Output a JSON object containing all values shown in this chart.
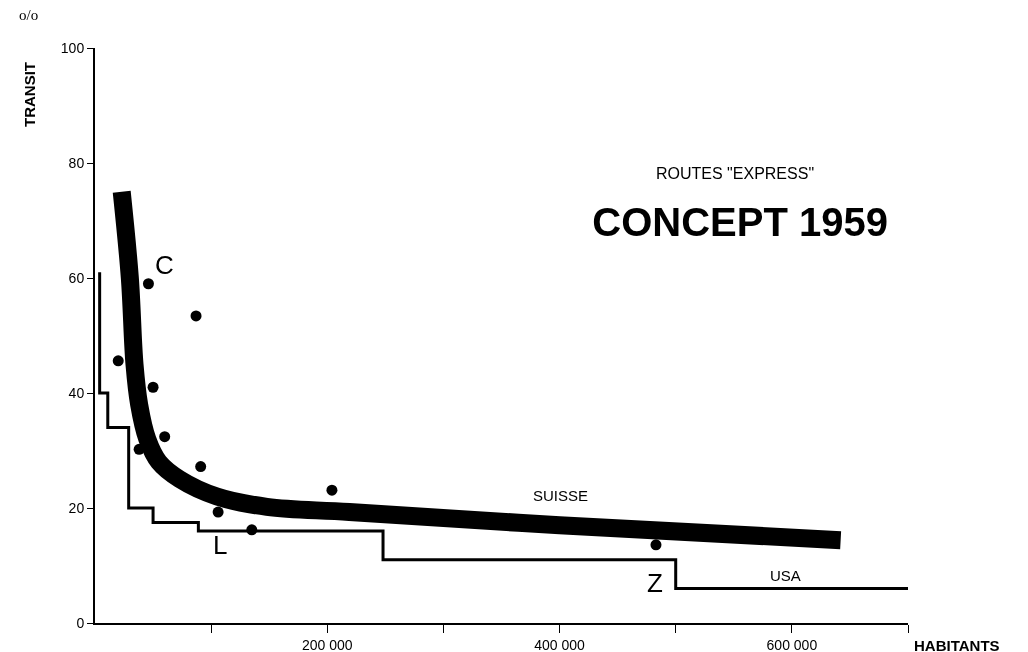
{
  "chart_data": {
    "type": "scatter",
    "title": "CONCEPT 1959",
    "subtitle": "ROUTES \"EXPRESS\"",
    "xlabel": "HABITANTS",
    "ylabel": "TRANSIT",
    "xlim": [
      0,
      700000
    ],
    "ylim": [
      0,
      100
    ],
    "xticks": [
      {
        "value": 100000,
        "label": null
      },
      {
        "value": 200000,
        "label": "200 000"
      },
      {
        "value": 300000,
        "label": null
      },
      {
        "value": 400000,
        "label": "400 000"
      },
      {
        "value": 500000,
        "label": null
      },
      {
        "value": 600000,
        "label": "600 000"
      },
      {
        "value": 700000,
        "label": null
      }
    ],
    "yticks": [
      0,
      20,
      40,
      60,
      80,
      100
    ],
    "grid": false,
    "line_style": "solid",
    "series": [
      {
        "type": "step",
        "color": "#000000",
        "x": [
          4000,
          4000,
          11000,
          29000,
          50000,
          89000,
          248000,
          500000,
          700000
        ],
        "values": [
          61,
          40,
          34,
          20,
          17.5,
          16,
          11,
          6,
          6
        ]
      },
      {
        "type": "line",
        "color": "#000000",
        "x": [
          23000,
          30000,
          34000,
          38000,
          45000,
          55000,
          73000,
          105000,
          148000,
          219000,
          400000,
          642000
        ],
        "values": [
          75,
          60,
          45,
          38,
          32,
          28,
          25,
          22,
          20.2,
          19.3,
          17,
          14.4
        ]
      },
      {
        "marker": "circle",
        "color": "#000000",
        "x": [
          20000,
          38000,
          46000,
          50000,
          60000,
          87000,
          91000,
          106000,
          135000,
          204000,
          483000
        ],
        "values": [
          45.6,
          30.2,
          59,
          41,
          32.4,
          53.4,
          27.2,
          19.3,
          16.2,
          23.1,
          13.6
        ]
      }
    ],
    "annotations": [
      "o/o",
      "C",
      "L",
      "Z",
      "SUISSE",
      "USA"
    ]
  }
}
